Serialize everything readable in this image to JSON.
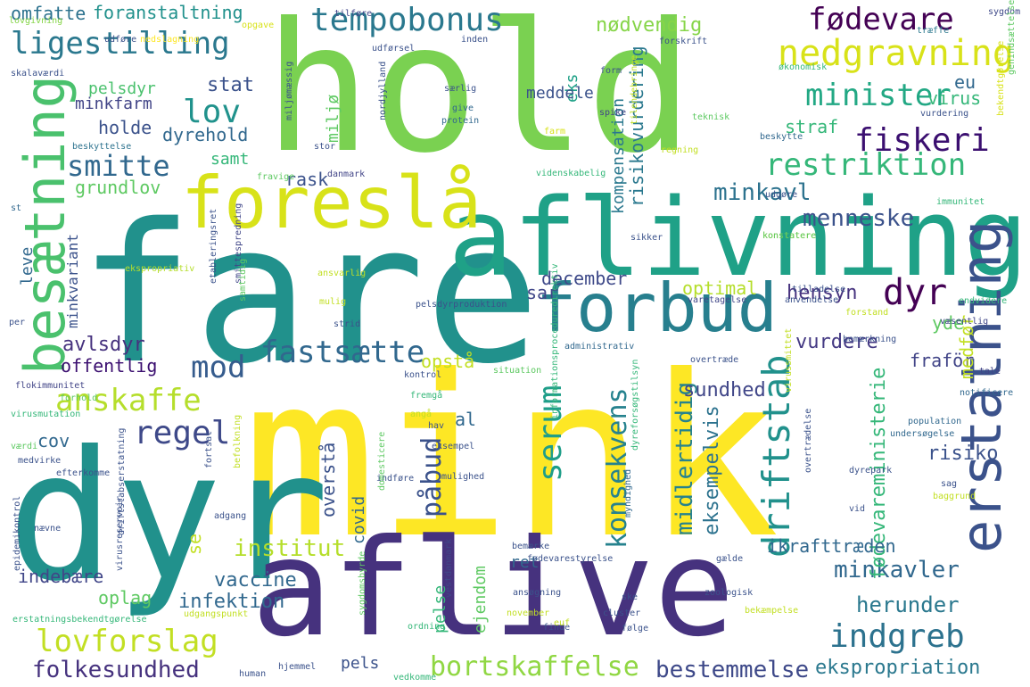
{
  "palette": {
    "purple": "#46327e",
    "dark-purple": "#3b0f70",
    "blue": "#365c8d",
    "blue2": "#277f8e",
    "teal": "#1fa187",
    "teal2": "#21918c",
    "green": "#4ac16d",
    "lime": "#a0da39",
    "yellow": "#fde725",
    "yellow2": "#d8e219",
    "dark-blue": "#440154"
  },
  "words": [
    {
      "text": "mink",
      "color": "#fde725"
    },
    {
      "text": "fare",
      "color": "#21918c"
    },
    {
      "text": "hold",
      "color": "#7ad151"
    },
    {
      "text": "dyr",
      "color": "#21918c"
    },
    {
      "text": "aflive",
      "color": "#46327e"
    },
    {
      "text": "aflivning",
      "color": "#1fa187"
    },
    {
      "text": "foreslå",
      "color": "#d8e219"
    },
    {
      "text": "forbud",
      "color": "#277f8e"
    },
    {
      "text": "besætning",
      "color": "#4ac16d"
    },
    {
      "text": "erstatning",
      "color": "#3b528b"
    },
    {
      "text": "tempobonus",
      "color": "#2a788e"
    },
    {
      "text": "fødevare",
      "color": "#440154"
    },
    {
      "text": "nedgravning",
      "color": "#d8e219"
    },
    {
      "text": "ligestilling",
      "color": "#2a788e"
    },
    {
      "text": "minister",
      "color": "#22a884"
    },
    {
      "text": "lov",
      "color": "#20928c"
    },
    {
      "text": "fiskeri",
      "color": "#3b0f70"
    },
    {
      "text": "restriktion",
      "color": "#35b779"
    },
    {
      "text": "smitte",
      "color": "#31688e"
    },
    {
      "text": "minkavl",
      "color": "#2c728e"
    },
    {
      "text": "menneske",
      "color": "#3b528b"
    },
    {
      "text": "dyr",
      "color": "#440154"
    },
    {
      "text": "mod",
      "color": "#365c8d"
    },
    {
      "text": "fastsætte",
      "color": "#31688e"
    },
    {
      "text": "anskaffe",
      "color": "#b5de2b"
    },
    {
      "text": "regel",
      "color": "#3e4989"
    },
    {
      "text": "serum",
      "color": "#1f9e89"
    },
    {
      "text": "driftstab",
      "color": "#21918c"
    },
    {
      "text": "konsekvens",
      "color": "#26828e"
    },
    {
      "text": "påbud",
      "color": "#3b528b"
    },
    {
      "text": "lovforslag",
      "color": "#c2df23"
    },
    {
      "text": "folkesundhed",
      "color": "#46327e"
    },
    {
      "text": "bortskaffelse",
      "color": "#90d743"
    },
    {
      "text": "bestemmelse",
      "color": "#3e4989"
    },
    {
      "text": "indgreb",
      "color": "#2c728e"
    },
    {
      "text": "institut",
      "color": "#b5de2b"
    },
    {
      "text": "herunder",
      "color": "#2a788e"
    },
    {
      "text": "minkavler",
      "color": "#31688e"
    },
    {
      "text": "ekspropriation",
      "color": "#2a788e"
    },
    {
      "text": "fødevareministerie",
      "color": "#35b779"
    },
    {
      "text": "midlertidig",
      "color": "#26828e"
    },
    {
      "text": "eksempelvis",
      "color": "#2c728e"
    },
    {
      "text": "risiko",
      "color": "#3b528b"
    },
    {
      "text": "sundhed",
      "color": "#404688"
    },
    {
      "text": "hensyn",
      "color": "#46327e"
    },
    {
      "text": "vurdere",
      "color": "#443983"
    },
    {
      "text": "optimal",
      "color": "#b5de2b"
    },
    {
      "text": "december",
      "color": "#3e4989"
    },
    {
      "text": "opstå",
      "color": "#c2df23"
    },
    {
      "text": "offentlig",
      "color": "#3b0f70"
    },
    {
      "text": "avlsdyr",
      "color": "#46327e"
    },
    {
      "text": "minkvariant",
      "color": "#3b528b"
    },
    {
      "text": "grundlov",
      "color": "#5ec962"
    },
    {
      "text": "dyrehold",
      "color": "#31688e"
    },
    {
      "text": "holde",
      "color": "#3b528b"
    },
    {
      "text": "minkfarm",
      "color": "#414487"
    },
    {
      "text": "pelsdyr",
      "color": "#4ac16d"
    },
    {
      "text": "stat",
      "color": "#3b528b"
    },
    {
      "text": "samt",
      "color": "#35b779"
    },
    {
      "text": "rask",
      "color": "#3b528b"
    },
    {
      "text": "miljø",
      "color": "#5ec962"
    },
    {
      "text": "kompensation",
      "color": "#2a788e"
    },
    {
      "text": "risikovurdering",
      "color": "#2a788e"
    },
    {
      "text": "eks",
      "color": "#1fa187"
    },
    {
      "text": "meddele",
      "color": "#3b528b"
    },
    {
      "text": "nødvendig",
      "color": "#86d549"
    },
    {
      "text": "foranstaltning",
      "color": "#21918c"
    },
    {
      "text": "omfatte",
      "color": "#2c728e"
    },
    {
      "text": "virus",
      "color": "#35b779"
    },
    {
      "text": "eu",
      "color": "#31688e"
    },
    {
      "text": "straf",
      "color": "#35b779"
    },
    {
      "text": "al",
      "color": "#31688e"
    },
    {
      "text": "cov",
      "color": "#31688e"
    },
    {
      "text": "covid",
      "color": "#31688e"
    },
    {
      "text": "overstå",
      "color": "#3b528b"
    },
    {
      "text": "sar",
      "color": "#404688"
    },
    {
      "text": "ret",
      "color": "#31688e"
    },
    {
      "text": "pelse",
      "color": "#35b779"
    },
    {
      "text": "pels",
      "color": "#3b528b"
    },
    {
      "text": "ejendom",
      "color": "#5ec962"
    },
    {
      "text": "infektion",
      "color": "#31688e"
    },
    {
      "text": "vaccine",
      "color": "#31688e"
    },
    {
      "text": "oplag",
      "color": "#5ec962"
    },
    {
      "text": "indebære",
      "color": "#404688"
    },
    {
      "text": "ikrafttræden",
      "color": "#31688e"
    },
    {
      "text": "yde",
      "color": "#5ec962"
    },
    {
      "text": "fraför",
      "color": "#414487"
    },
    {
      "text": "medfør",
      "color": "#c2df23"
    },
    {
      "text": "se",
      "color": "#c2df23"
    },
    {
      "text": "leve",
      "color": "#31688e"
    },
    {
      "text": "skalaværdi",
      "color": "#3b528b"
    },
    {
      "text": "udføre",
      "color": "#3b528b"
    },
    {
      "text": "nedslagning",
      "color": "#fde725"
    },
    {
      "text": "lovgivning",
      "color": "#86d549"
    },
    {
      "text": "opgave",
      "color": "#d8e219"
    },
    {
      "text": "udførsel",
      "color": "#3b528b"
    },
    {
      "text": "tilføre",
      "color": "#404688"
    },
    {
      "text": "inden",
      "color": "#3b528b"
    },
    {
      "text": "forskrift",
      "color": "#3b528b"
    },
    {
      "text": "træffe",
      "color": "#2a788e"
    },
    {
      "text": "sygdom",
      "color": "#3e4989"
    },
    {
      "text": "økonomisk",
      "color": "#35b779"
    },
    {
      "text": "genindsættelse",
      "color": "#5ec962"
    },
    {
      "text": "vurdering",
      "color": "#3b528b"
    },
    {
      "text": "beskytte",
      "color": "#31688e"
    },
    {
      "text": "bekendtgørelse",
      "color": "#d8e219"
    },
    {
      "text": "teknisk",
      "color": "#5ec962"
    },
    {
      "text": "form",
      "color": "#3b528b"
    },
    {
      "text": "særlig",
      "color": "#3b528b"
    },
    {
      "text": "give",
      "color": "#31688e"
    },
    {
      "text": "protein",
      "color": "#31688e"
    },
    {
      "text": "spike",
      "color": "#414487"
    },
    {
      "text": "farm",
      "color": "#d8e219"
    },
    {
      "text": "nordjylland",
      "color": "#3b528b"
    },
    {
      "text": "stor",
      "color": "#3b528b"
    },
    {
      "text": "danmark",
      "color": "#414487"
    },
    {
      "text": "miljømæssig",
      "color": "#3b528b"
    },
    {
      "text": "beskyttelse",
      "color": "#2c728e"
    },
    {
      "text": "videnskabelig",
      "color": "#35b779"
    },
    {
      "text": "tilendebringe",
      "color": "#c2df23"
    },
    {
      "text": "regning",
      "color": "#c2df23"
    },
    {
      "text": "udgøre",
      "color": "#3b528b"
    },
    {
      "text": "immunitet",
      "color": "#35b779"
    },
    {
      "text": "fravige",
      "color": "#5ec962"
    },
    {
      "text": "st",
      "color": "#31688e"
    },
    {
      "text": "konstatere",
      "color": "#c2df23"
    },
    {
      "text": "konstatere",
      "color": "#5ec962"
    },
    {
      "text": "sikker",
      "color": "#3b528b"
    },
    {
      "text": "ekspropriativ",
      "color": "#b5de2b"
    },
    {
      "text": "etableringsret",
      "color": "#3b528b"
    },
    {
      "text": "smittespredning",
      "color": "#404688"
    },
    {
      "text": "ansvarlig",
      "color": "#c2df23"
    },
    {
      "text": "mulig",
      "color": "#c2df23"
    },
    {
      "text": "pelsdyrproduktion",
      "color": "#3b528b"
    },
    {
      "text": "strid",
      "color": "#3b528b"
    },
    {
      "text": "varetagelse",
      "color": "#404688"
    },
    {
      "text": "tilladelse",
      "color": "#3b528b"
    },
    {
      "text": "anvendelse",
      "color": "#3b528b"
    },
    {
      "text": "væsentlig",
      "color": "#404688"
    },
    {
      "text": "endvidere",
      "color": "#35b779"
    },
    {
      "text": "forstand",
      "color": "#c2df23"
    },
    {
      "text": "bemærkning",
      "color": "#3b528b"
    },
    {
      "text": "samtidig",
      "color": "#5ec962"
    },
    {
      "text": "per",
      "color": "#3b528b"
    },
    {
      "text": "administrativ",
      "color": "#31688e"
    },
    {
      "text": "overtræde",
      "color": "#3b528b"
    },
    {
      "text": "situation",
      "color": "#5ec962"
    },
    {
      "text": "informationsproceduredirektiv",
      "color": "#35b779"
    },
    {
      "text": "fødevarestyrelse",
      "color": "#3b528b"
    },
    {
      "text": "tale",
      "color": "#414487"
    },
    {
      "text": "notificere",
      "color": "#31688e"
    },
    {
      "text": "kontrol",
      "color": "#3b528b"
    },
    {
      "text": "flokimmunitet",
      "color": "#414487"
    },
    {
      "text": "forhold",
      "color": "#5ec962"
    },
    {
      "text": "fremgå",
      "color": "#35b779"
    },
    {
      "text": "hav",
      "color": "#3b528b"
    },
    {
      "text": "virussmittet",
      "color": "#c2df23"
    },
    {
      "text": "overtrædelse",
      "color": "#3b528b"
    },
    {
      "text": "population",
      "color": "#31688e"
    },
    {
      "text": "undersøgelse",
      "color": "#31688e"
    },
    {
      "text": "dyrepark",
      "color": "#3b528b"
    },
    {
      "text": "sag",
      "color": "#3b528b"
    },
    {
      "text": "baggrund",
      "color": "#c2df23"
    },
    {
      "text": "vid",
      "color": "#3b528b"
    },
    {
      "text": "virusmutation",
      "color": "#35b779"
    },
    {
      "text": "angå",
      "color": "#c2df23"
    },
    {
      "text": "eksempel",
      "color": "#3b528b"
    },
    {
      "text": "dyreforsøgstilsyn",
      "color": "#35b779"
    },
    {
      "text": "mulighed",
      "color": "#3b528b"
    },
    {
      "text": "myndighed",
      "color": "#31688e"
    },
    {
      "text": "værdi",
      "color": "#5ec962"
    },
    {
      "text": "medvirke",
      "color": "#3b528b"
    },
    {
      "text": "efterkomme",
      "color": "#3b528b"
    },
    {
      "text": "fortsat",
      "color": "#3b528b"
    },
    {
      "text": "befolkning",
      "color": "#c2df23"
    },
    {
      "text": "indføre",
      "color": "#3b528b"
    },
    {
      "text": "domesticere",
      "color": "#5ec962"
    },
    {
      "text": "driftstabserstatning",
      "color": "#3b528b"
    },
    {
      "text": "epidemikontrol",
      "color": "#3b528b"
    },
    {
      "text": "virusreservoir",
      "color": "#3b528b"
    },
    {
      "text": "nævne",
      "color": "#3b528b"
    },
    {
      "text": "adgang",
      "color": "#3b528b"
    },
    {
      "text": "bemærke",
      "color": "#3b528b"
    },
    {
      "text": "gælde",
      "color": "#3b528b"
    },
    {
      "text": "zoologisk",
      "color": "#3b528b"
    },
    {
      "text": "ansøgning",
      "color": "#3b528b"
    },
    {
      "text": "vestdanmark",
      "color": "#404688"
    },
    {
      "text": "sygdomsbyrde",
      "color": "#5ec962"
    },
    {
      "text": "november",
      "color": "#c2df23"
    },
    {
      "text": "cluster",
      "color": "#3b528b"
    },
    {
      "text": "ske",
      "color": "#3b528b"
    },
    {
      "text": "erstatningsbekendtgørelse",
      "color": "#35b779"
    },
    {
      "text": "udgangspunkt",
      "color": "#c2df23"
    },
    {
      "text": "ordning",
      "color": "#35b779"
    },
    {
      "text": "finde",
      "color": "#3b528b"
    },
    {
      "text": "euf",
      "color": "#c2df23"
    },
    {
      "text": "følge",
      "color": "#3b528b"
    },
    {
      "text": "bekæmpelse",
      "color": "#c2df23"
    },
    {
      "text": "human",
      "color": "#3b528b"
    },
    {
      "text": "hjemmel",
      "color": "#3b528b"
    },
    {
      "text": "vedkomme",
      "color": "#35b779"
    }
  ]
}
